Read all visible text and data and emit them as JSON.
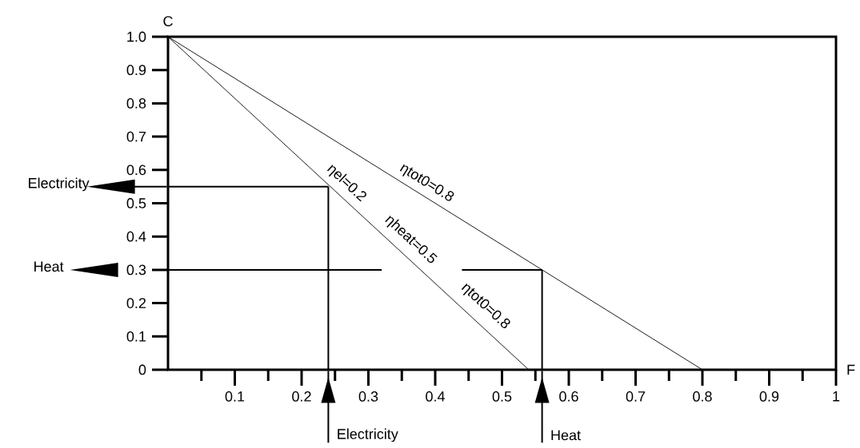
{
  "chart_data": {
    "type": "line",
    "xlabel": "F",
    "ylabel": "C",
    "xlim": [
      0,
      1
    ],
    "ylim": [
      0,
      1
    ],
    "xticks": [
      {
        "value": 0.05,
        "label": null
      },
      0.1,
      {
        "value": 0.15,
        "label": null
      },
      0.2,
      {
        "value": 0.25,
        "label": null
      },
      0.3,
      {
        "value": 0.35,
        "label": null
      },
      0.4,
      {
        "value": 0.45,
        "label": null
      },
      0.5,
      {
        "value": 0.55,
        "label": null
      },
      0.6,
      {
        "value": 0.65,
        "label": null
      },
      0.7,
      {
        "value": 0.75,
        "label": null
      },
      0.8,
      {
        "value": 0.85,
        "label": null
      },
      0.9,
      {
        "value": 0.95,
        "label": null
      },
      1
    ],
    "yticks": [
      0,
      0.1,
      0.2,
      0.3,
      0.4,
      0.5,
      0.6,
      0.7,
      0.8,
      0.9,
      {
        "value": 1,
        "label": "1.0"
      }
    ],
    "grid": false,
    "marker": "none",
    "line_style": "solid",
    "series": [
      {
        "color": "#000000",
        "x": [
          0,
          0.8
        ],
        "values": [
          1,
          0
        ]
      },
      {
        "color": "#000000",
        "x": [
          0,
          0.54
        ],
        "values": [
          1,
          0
        ]
      },
      {
        "color": "#000000",
        "x": [
          0,
          0.24
        ],
        "values": [
          0.55,
          0.55
        ]
      },
      {
        "color": "#000000",
        "x": [
          0.24,
          0.24
        ],
        "values": [
          0,
          0.55
        ]
      },
      {
        "color": "#000000",
        "x": [
          0,
          0.32
        ],
        "values": [
          0.3,
          0.3
        ]
      },
      {
        "color": "#000000",
        "x": [
          0.44,
          0.56
        ],
        "values": [
          0.3,
          0.3
        ]
      },
      {
        "color": "#000000",
        "x": [
          0.56,
          0.56
        ],
        "values": [
          0,
          0.3
        ]
      }
    ],
    "annotations": [
      "ηel=0.2",
      "ηheat=0.5",
      "ηtot0=0.8",
      "ηtot0=0.8",
      "Electricity",
      "Heat",
      "Electricity",
      "Heat"
    ]
  }
}
